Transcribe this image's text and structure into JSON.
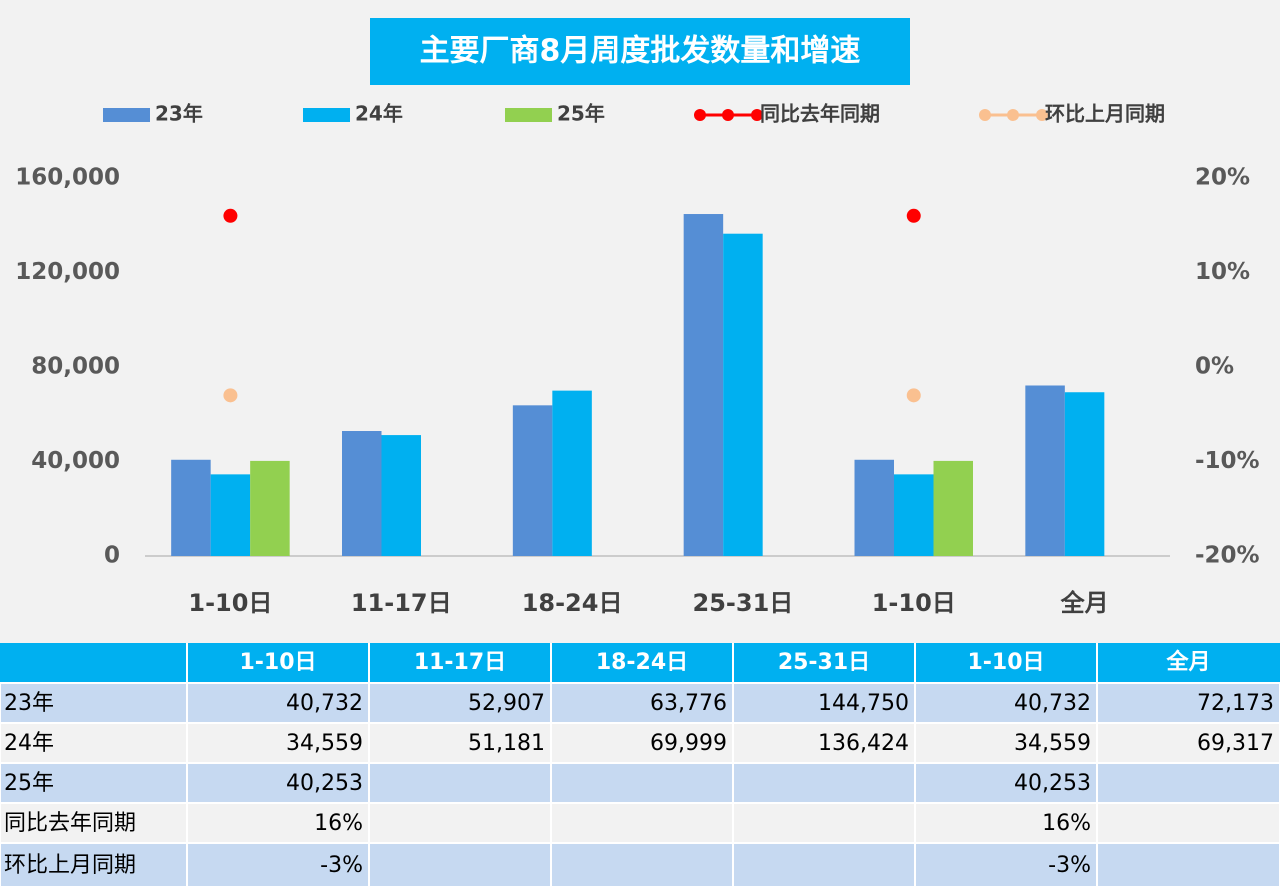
{
  "chart_data": {
    "type": "bar",
    "title": "主要厂商8月周度批发数量和增速",
    "categories": [
      "1-10日",
      "11-17日",
      "18-24日",
      "25-31日",
      "1-10日",
      "全月"
    ],
    "series": [
      {
        "name": "23年",
        "color": "#558ed5",
        "values": [
          40732,
          52907,
          63776,
          144750,
          40732,
          72173
        ],
        "value_labels": [
          "40,732",
          "52,907",
          "63,776",
          "144,750",
          "40,732",
          "72,173"
        ]
      },
      {
        "name": "24年",
        "color": "#00b0f0",
        "values": [
          34559,
          51181,
          69999,
          136424,
          34559,
          69317
        ],
        "value_labels": [
          "34,559",
          "51,181",
          "69,999",
          "136,424",
          "34,559",
          "69,317"
        ]
      },
      {
        "name": "25年",
        "color": "#92d050",
        "values": [
          40253,
          null,
          null,
          null,
          40253,
          null
        ],
        "value_labels": [
          "40,253",
          null,
          null,
          null,
          "40,253",
          null
        ]
      },
      {
        "name": "同比去年同期",
        "type": "line",
        "axis": "y2",
        "color": "#ff0000",
        "values": [
          16,
          null,
          null,
          null,
          16,
          null
        ],
        "value_labels": [
          "16%",
          null,
          null,
          null,
          "16%",
          null
        ]
      },
      {
        "name": "环比上月同期",
        "type": "line",
        "axis": "y2",
        "color": "#fac090",
        "values": [
          -3,
          null,
          null,
          null,
          -3,
          null
        ],
        "value_labels": [
          "-3%",
          null,
          null,
          null,
          "-3%",
          null
        ]
      }
    ],
    "ylim": [
      0,
      160000
    ],
    "yticks": [
      0,
      {
        "value": 40000,
        "label": "40,000"
      },
      {
        "value": 80000,
        "label": "80,000"
      },
      {
        "value": 120000,
        "label": "120,000"
      },
      {
        "value": 160000,
        "label": "160,000"
      }
    ],
    "y2lim": [
      -20,
      20
    ],
    "y2ticks": [
      {
        "value": -20,
        "label": "-20%"
      },
      {
        "value": -10,
        "label": "-10%"
      },
      {
        "value": 0,
        "label": "0%"
      },
      {
        "value": 10,
        "label": "10%"
      },
      {
        "value": 20,
        "label": "20%"
      }
    ],
    "legend": "top",
    "grid": false
  }
}
